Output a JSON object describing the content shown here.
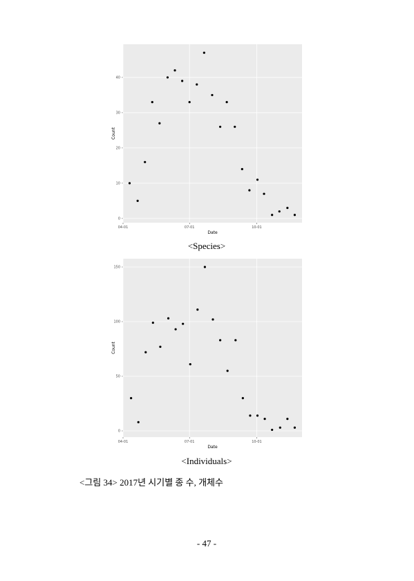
{
  "chart_data": [
    {
      "type": "scatter",
      "x_label": "Date",
      "y_label": "Count",
      "color": "#000000",
      "grid": true,
      "x": [
        "04-10",
        "04-21",
        "05-01",
        "05-11",
        "05-21",
        "06-01",
        "06-11",
        "06-21",
        "07-01",
        "07-11",
        "07-21",
        "08-01",
        "08-12",
        "08-21",
        "09-01",
        "09-11",
        "09-21",
        "10-02",
        "10-11",
        "10-22",
        "11-01",
        "11-12",
        "11-22"
      ],
      "values": [
        10,
        5,
        16,
        33,
        27,
        40,
        42,
        39,
        33,
        38,
        47,
        35,
        26,
        33,
        26,
        14,
        8,
        11,
        7,
        1,
        2,
        3,
        1
      ],
      "xlim": [
        "04-01",
        "12-02"
      ],
      "xticks": [
        "04-01",
        "07-01",
        "10-01"
      ],
      "ylim": [
        -1.2,
        49.4
      ],
      "yticks": [
        0,
        10,
        20,
        30,
        40
      ]
    },
    {
      "type": "scatter",
      "x_label": "Date",
      "y_label": "Count",
      "color": "#000000",
      "grid": true,
      "x": [
        "04-12",
        "04-22",
        "05-02",
        "05-12",
        "05-22",
        "06-02",
        "06-12",
        "06-22",
        "07-02",
        "07-12",
        "07-22",
        "08-02",
        "08-12",
        "08-22",
        "09-02",
        "09-12",
        "09-22",
        "10-02",
        "10-12",
        "10-22",
        "11-02",
        "11-12",
        "11-22"
      ],
      "values": [
        30,
        8,
        72,
        99,
        77,
        103,
        93,
        98,
        61,
        111,
        150,
        102,
        83,
        55,
        83,
        30,
        14,
        14,
        11,
        1,
        3,
        11,
        3
      ],
      "xlim": [
        "04-01",
        "12-02"
      ],
      "xticks": [
        "04-01",
        "07-01",
        "10-01"
      ],
      "ylim": [
        -5.7,
        157.6
      ],
      "yticks": [
        0,
        50,
        100,
        150
      ]
    }
  ],
  "captions": [
    "<Species>",
    "<Individuals>"
  ],
  "figure_caption": "<그림 34> 2017년 시기별 종 수, 개체수",
  "page_number": "- 47 -"
}
